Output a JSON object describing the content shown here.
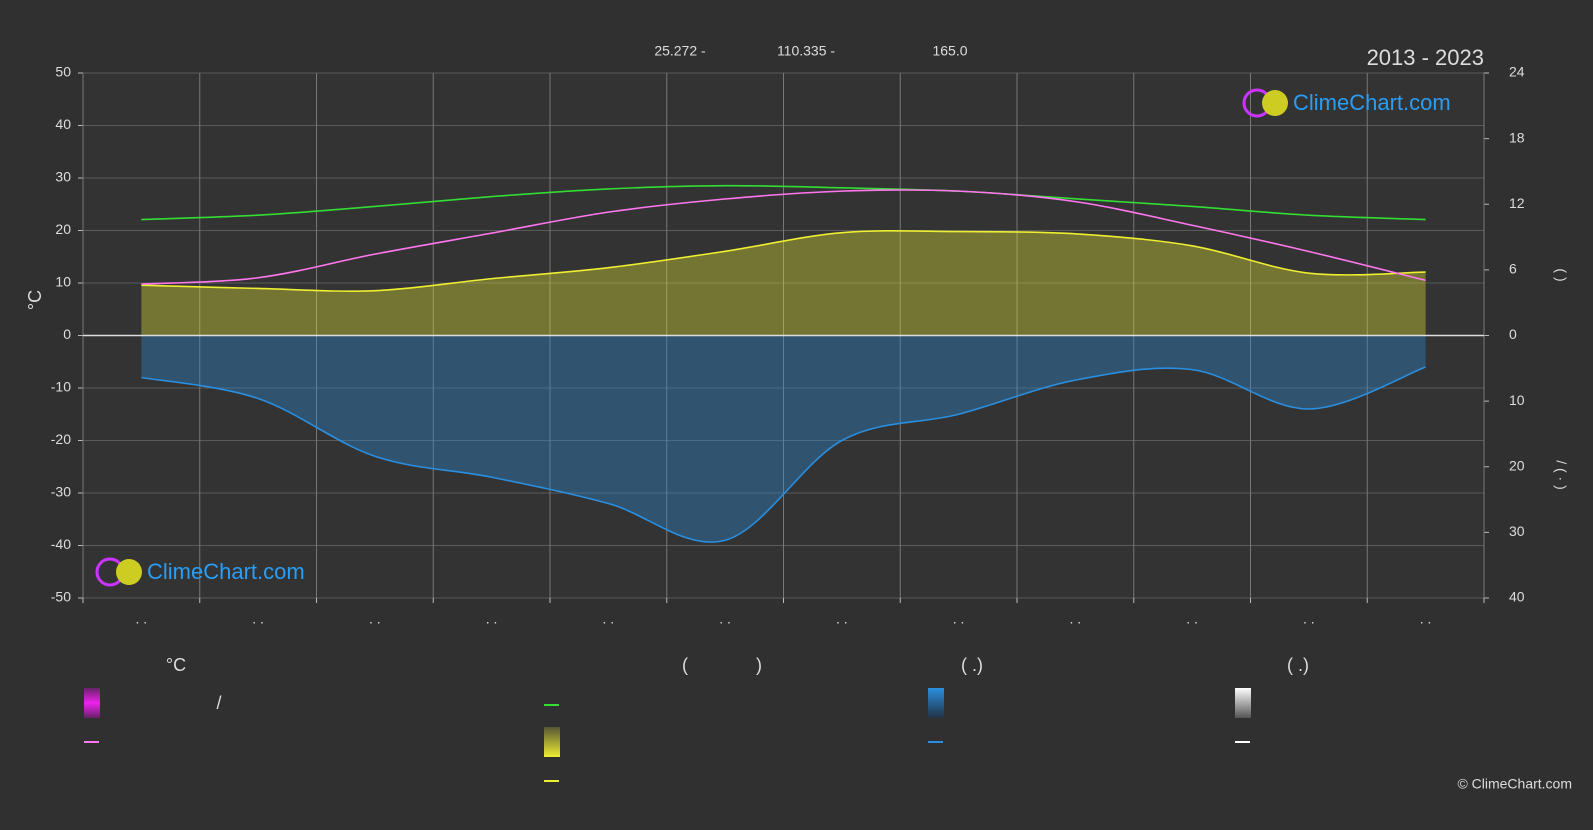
{
  "chart_data": {
    "type": "line",
    "title": "2013 - 2023",
    "header": [
      "25.272 -",
      "110.335 -",
      "165.0"
    ],
    "ylabel": "°C",
    "y2_label": "(   )",
    "y3_label": "/   ( · )",
    "categories": [
      ". .",
      ". .",
      ". .",
      ". .",
      ". .",
      ". .",
      ". .",
      ". .",
      ". .",
      ". .",
      ". .",
      ". ."
    ],
    "ylim": [
      -50,
      50
    ],
    "yticks": [
      -50,
      -40,
      -30,
      -20,
      -10,
      0,
      10,
      20,
      30,
      40,
      50
    ],
    "y2lim": [
      0,
      24
    ],
    "y2ticks": [
      0,
      6,
      12,
      18,
      24
    ],
    "y3lim": [
      0,
      40
    ],
    "y3ticks": [
      10,
      20,
      30,
      40
    ],
    "grid": true,
    "series": [
      {
        "color": "#33dd33",
        "axis": "y2",
        "values": [
          10.6,
          11.0,
          11.8,
          12.7,
          13.4,
          13.7,
          13.5,
          13.2,
          12.5,
          11.8,
          11.0,
          10.6
        ]
      },
      {
        "color": "#eeee33",
        "axis": "y2",
        "area": true,
        "values": [
          4.6,
          4.3,
          4.1,
          5.2,
          6.2,
          7.7,
          9.4,
          9.5,
          9.3,
          8.2,
          5.7,
          5.8
        ]
      },
      {
        "color": "#ff77ee",
        "axis": "y",
        "values": [
          9.8,
          11,
          15.5,
          19.5,
          23.5,
          26,
          27.5,
          27.5,
          25.5,
          21,
          16,
          10.5
        ]
      },
      {
        "color": "#2a8fe0",
        "axis": "y3",
        "area": true,
        "values": [
          6.4,
          9.6,
          18.4,
          21.6,
          25.6,
          31.2,
          16,
          12,
          6.8,
          5.2,
          11.2,
          4.8
        ]
      }
    ],
    "legend": {
      "heads": [
        "°C",
        "(",
        ")",
        "( .)",
        "( .)"
      ],
      "slash": "/"
    },
    "logo": "ClimeChart.com",
    "copyright": "© ClimeChart.com"
  }
}
